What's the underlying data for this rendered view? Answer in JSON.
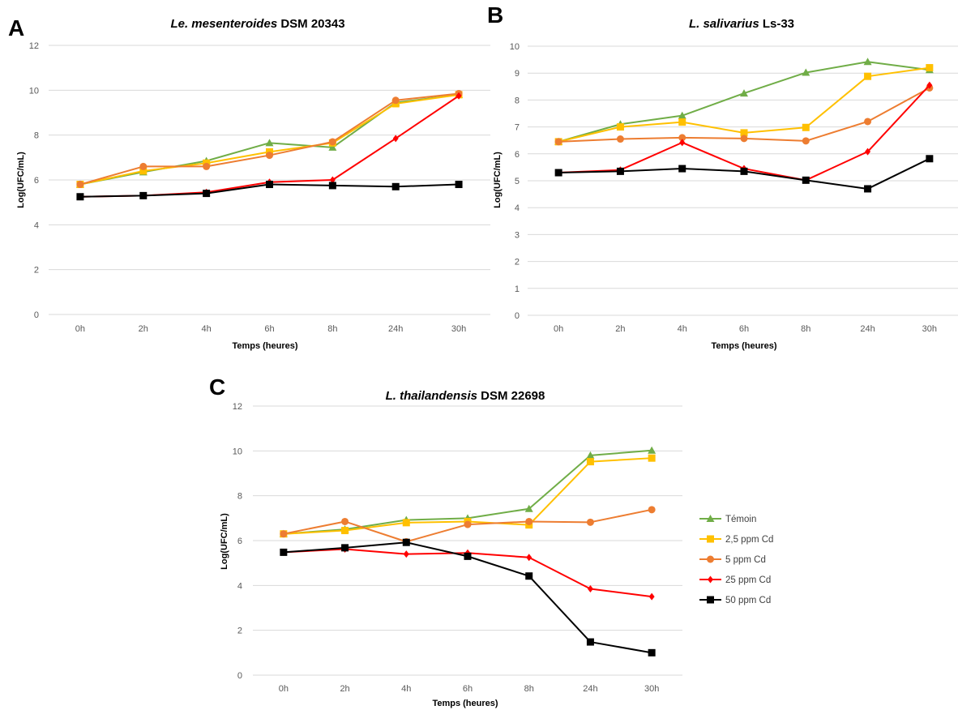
{
  "legend": [
    {
      "label": "Témoin",
      "color": "#70ad47",
      "marker": "triangle"
    },
    {
      "label": "2,5 ppm Cd",
      "color": "#ffc000",
      "marker": "square"
    },
    {
      "label": "5 ppm Cd",
      "color": "#ed7d31",
      "marker": "circle"
    },
    {
      "label": "25 ppm Cd",
      "color": "#ff0000",
      "marker": "diamond"
    },
    {
      "label": "50 ppm Cd",
      "color": "#000000",
      "marker": "square"
    }
  ],
  "chart_data": [
    {
      "type": "line",
      "panel": "A",
      "title_italic": "Le. mesenteroides",
      "title_rest": " DSM 20343",
      "xlabel": "Temps (heures)",
      "ylabel": "Log(UFC/mL)",
      "categories": [
        "0h",
        "2h",
        "4h",
        "6h",
        "8h",
        "24h",
        "30h"
      ],
      "ylim": [
        0,
        12
      ],
      "yticks": [
        0,
        2,
        4,
        6,
        8,
        10,
        12
      ],
      "grid": true,
      "series": [
        {
          "name": "Témoin",
          "values": [
            5.8,
            6.35,
            6.85,
            7.65,
            7.45,
            9.45,
            9.8
          ]
        },
        {
          "name": "2,5 ppm Cd",
          "values": [
            5.8,
            6.4,
            6.75,
            7.25,
            7.65,
            9.4,
            9.8
          ]
        },
        {
          "name": "5 ppm Cd",
          "values": [
            5.8,
            6.6,
            6.6,
            7.1,
            7.7,
            9.55,
            9.85
          ]
        },
        {
          "name": "25 ppm Cd",
          "values": [
            5.25,
            5.3,
            5.45,
            5.9,
            6.0,
            7.85,
            9.75
          ]
        },
        {
          "name": "50 ppm Cd",
          "values": [
            5.25,
            5.3,
            5.4,
            5.8,
            5.75,
            5.7,
            5.8
          ]
        }
      ]
    },
    {
      "type": "line",
      "panel": "B",
      "title_italic": "L. salivarius",
      "title_rest": " Ls-33",
      "xlabel": "Temps (heures)",
      "ylabel": "Log(UFC/mL)",
      "categories": [
        "0h",
        "2h",
        "4h",
        "6h",
        "8h",
        "24h",
        "30h"
      ],
      "ylim": [
        0,
        10
      ],
      "yticks": [
        0,
        1,
        2,
        3,
        4,
        5,
        6,
        7,
        8,
        9,
        10
      ],
      "grid": true,
      "series": [
        {
          "name": "Témoin",
          "values": [
            6.45,
            7.1,
            7.42,
            8.25,
            9.02,
            9.42,
            9.12
          ]
        },
        {
          "name": "2,5 ppm Cd",
          "values": [
            6.45,
            7.0,
            7.18,
            6.78,
            6.98,
            8.88,
            9.2
          ]
        },
        {
          "name": "5 ppm Cd",
          "values": [
            6.45,
            6.55,
            6.6,
            6.57,
            6.48,
            7.2,
            8.45
          ]
        },
        {
          "name": "25 ppm Cd",
          "values": [
            5.3,
            5.4,
            6.42,
            5.45,
            5.02,
            6.08,
            8.55
          ]
        },
        {
          "name": "50 ppm Cd",
          "values": [
            5.3,
            5.35,
            5.45,
            5.35,
            5.02,
            4.7,
            5.82
          ]
        }
      ]
    },
    {
      "type": "line",
      "panel": "C",
      "title_italic": "L. thailandensis",
      "title_rest": " DSM 22698",
      "xlabel": "Temps (heures)",
      "ylabel": "Log(UFC/mL)",
      "categories": [
        "0h",
        "2h",
        "4h",
        "6h",
        "8h",
        "24h",
        "30h"
      ],
      "ylim": [
        0,
        12
      ],
      "yticks": [
        0,
        2,
        4,
        6,
        8,
        10,
        12
      ],
      "grid": true,
      "legend_position": "right",
      "series": [
        {
          "name": "Témoin",
          "values": [
            6.3,
            6.5,
            6.92,
            7.0,
            7.42,
            9.8,
            10.02
          ]
        },
        {
          "name": "2,5 ppm Cd",
          "values": [
            6.3,
            6.45,
            6.8,
            6.85,
            6.7,
            9.52,
            9.68
          ]
        },
        {
          "name": "5 ppm Cd",
          "values": [
            6.3,
            6.85,
            5.95,
            6.72,
            6.85,
            6.82,
            7.38
          ]
        },
        {
          "name": "25 ppm Cd",
          "values": [
            5.48,
            5.62,
            5.4,
            5.45,
            5.25,
            3.85,
            3.5
          ]
        },
        {
          "name": "50 ppm Cd",
          "values": [
            5.48,
            5.68,
            5.92,
            5.3,
            4.42,
            1.48,
            1.0
          ]
        }
      ]
    }
  ]
}
